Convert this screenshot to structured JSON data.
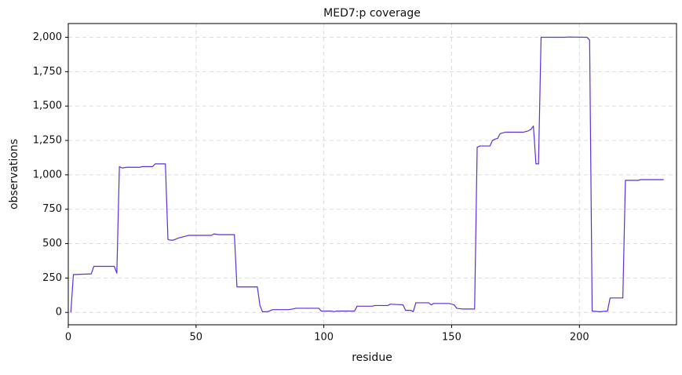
{
  "chart_data": {
    "type": "line",
    "title": "MED7:p coverage",
    "x_label": "residue",
    "y_label": "observations",
    "x": [
      1,
      2,
      9,
      10,
      18,
      19,
      20,
      21,
      23,
      28,
      29,
      33,
      34,
      38,
      39,
      40,
      41,
      43,
      45,
      47,
      56,
      57,
      59,
      65,
      66,
      74,
      75,
      76,
      78,
      80,
      86,
      88,
      89,
      98,
      99,
      103,
      104,
      105,
      112,
      113,
      119,
      120,
      125,
      126,
      131,
      132,
      134,
      135,
      136,
      141,
      142,
      143,
      149,
      151,
      152,
      154,
      159,
      160,
      161,
      165,
      166,
      167,
      168,
      169,
      171,
      178,
      180,
      181,
      182,
      183,
      184,
      185,
      194,
      196,
      203,
      204,
      205,
      208,
      211,
      212,
      217,
      218,
      223,
      224,
      233
    ],
    "values": [
      0,
      275,
      280,
      335,
      335,
      285,
      1060,
      1050,
      1055,
      1055,
      1060,
      1060,
      1080,
      1080,
      530,
      525,
      525,
      540,
      550,
      560,
      560,
      570,
      565,
      565,
      185,
      185,
      50,
      5,
      5,
      20,
      20,
      25,
      30,
      30,
      10,
      10,
      5,
      10,
      10,
      45,
      45,
      50,
      50,
      60,
      55,
      15,
      15,
      5,
      70,
      70,
      55,
      65,
      65,
      55,
      30,
      25,
      25,
      1200,
      1210,
      1210,
      1250,
      1260,
      1265,
      1300,
      1310,
      1310,
      1320,
      1330,
      1355,
      1080,
      1080,
      2000,
      2000,
      2002,
      2000,
      1980,
      10,
      5,
      10,
      105,
      105,
      960,
      960,
      965,
      965
    ],
    "color": "#5b2fd4",
    "xlim": [
      0,
      238
    ],
    "xticks": [
      0,
      50,
      100,
      150,
      200
    ],
    "ylim": [
      -90,
      2100
    ],
    "yticks": [
      0,
      250,
      500,
      750,
      {
        "value": 1000,
        "label": "1,000"
      },
      {
        "value": 1250,
        "label": "1,250"
      },
      {
        "value": 1500,
        "label": "1,500"
      },
      {
        "value": 1750,
        "label": "1,750"
      },
      {
        "value": 2000,
        "label": "2,000"
      }
    ],
    "grid": true
  }
}
